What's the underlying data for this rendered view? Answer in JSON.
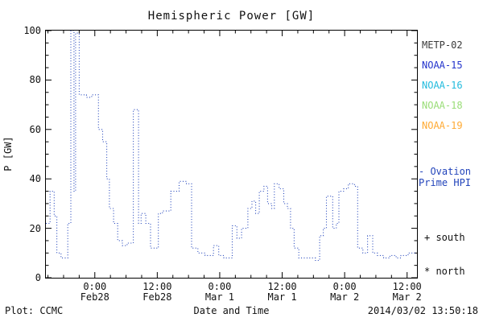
{
  "title": "Hemispheric Power [GW]",
  "y_axis_title": "P [GW]",
  "x_axis_title": "Date and Time",
  "footer": {
    "plot_source": "Plot: CCMC",
    "timestamp": "2014/03/02 13:50:18"
  },
  "legend": {
    "satellites": [
      {
        "label": "METP-02",
        "color": "#3a3a3a"
      },
      {
        "label": "NOAA-15",
        "color": "#2233cc"
      },
      {
        "label": "NOAA-16",
        "color": "#22bbdd"
      },
      {
        "label": "NOAA-18",
        "color": "#99dd77"
      },
      {
        "label": "NOAA-19",
        "color": "#ffaa33"
      }
    ],
    "series_line1": "- Ovation",
    "series_line2": "Prime HPI",
    "series_color": "#2244bb",
    "south_marker": "+ south",
    "north_marker": "* north"
  },
  "chart_data": {
    "type": "line",
    "title": "Hemispheric Power [GW]",
    "xlabel": "Date and Time",
    "ylabel": "P [GW]",
    "ylim": [
      0,
      100
    ],
    "yticks": [
      0,
      20,
      40,
      60,
      80,
      100
    ],
    "ytick_labels": [
      "0",
      "20",
      "40",
      "60",
      "80",
      "100"
    ],
    "x_unit": "hours relative to 2014-02-28 00:00 UT",
    "xlim": [
      -9.4,
      61.9
    ],
    "xticks": [
      {
        "hour": 0,
        "time": "0:00",
        "date": "Feb28"
      },
      {
        "hour": 12,
        "time": "12:00",
        "date": "Feb28"
      },
      {
        "hour": 24,
        "time": "0:00",
        "date": "Mar 1"
      },
      {
        "hour": 36,
        "time": "12:00",
        "date": "Mar 1"
      },
      {
        "hour": 48,
        "time": "0:00",
        "date": "Mar 2"
      },
      {
        "hour": 60,
        "time": "12:00",
        "date": "Mar 2"
      }
    ],
    "line_color": "#2244bb",
    "line_style": "dotted",
    "step": true,
    "markers": {
      "south": "+",
      "north": "*"
    },
    "legend_position": "right",
    "grid": false,
    "series": [
      {
        "name": "Ovation Prime HPI",
        "points": [
          [
            -9.4,
            22
          ],
          [
            -8.6,
            35
          ],
          [
            -7.8,
            25
          ],
          [
            -7.3,
            10
          ],
          [
            -6.5,
            8
          ],
          [
            -5.2,
            22
          ],
          [
            -4.6,
            100
          ],
          [
            -4.0,
            35
          ],
          [
            -3.7,
            99
          ],
          [
            -3.0,
            74
          ],
          [
            -1.6,
            73
          ],
          [
            -0.6,
            74
          ],
          [
            0.7,
            60
          ],
          [
            1.5,
            55
          ],
          [
            2.3,
            40
          ],
          [
            2.8,
            28
          ],
          [
            3.6,
            22
          ],
          [
            4.4,
            15
          ],
          [
            5.3,
            13
          ],
          [
            6.2,
            14
          ],
          [
            7.4,
            68
          ],
          [
            8.4,
            22
          ],
          [
            8.9,
            26
          ],
          [
            9.8,
            22
          ],
          [
            10.7,
            12
          ],
          [
            12.2,
            26
          ],
          [
            13.0,
            27
          ],
          [
            14.6,
            35
          ],
          [
            16.2,
            39
          ],
          [
            17.6,
            38
          ],
          [
            18.6,
            12
          ],
          [
            19.8,
            10
          ],
          [
            21.2,
            9
          ],
          [
            22.8,
            13
          ],
          [
            23.8,
            9
          ],
          [
            24.8,
            8
          ],
          [
            26.4,
            21
          ],
          [
            27.3,
            16
          ],
          [
            28.2,
            20
          ],
          [
            29.4,
            28
          ],
          [
            30.2,
            31
          ],
          [
            30.9,
            26
          ],
          [
            31.6,
            35
          ],
          [
            32.5,
            37
          ],
          [
            33.2,
            30
          ],
          [
            34.0,
            28
          ],
          [
            34.5,
            38
          ],
          [
            35.4,
            36
          ],
          [
            36.3,
            30
          ],
          [
            37.0,
            28
          ],
          [
            37.6,
            20
          ],
          [
            38.3,
            12
          ],
          [
            39.2,
            8
          ],
          [
            42.4,
            7
          ],
          [
            43.2,
            17
          ],
          [
            43.9,
            20
          ],
          [
            44.5,
            33
          ],
          [
            45.7,
            20
          ],
          [
            46.4,
            22
          ],
          [
            46.9,
            35
          ],
          [
            47.8,
            36
          ],
          [
            48.7,
            38
          ],
          [
            49.9,
            37
          ],
          [
            50.5,
            12
          ],
          [
            51.5,
            10
          ],
          [
            52.4,
            17
          ],
          [
            53.4,
            10
          ],
          [
            54.3,
            9
          ],
          [
            55.5,
            8
          ],
          [
            56.7,
            9
          ],
          [
            57.9,
            8
          ],
          [
            58.8,
            9
          ],
          [
            60.2,
            10
          ]
        ]
      }
    ]
  }
}
